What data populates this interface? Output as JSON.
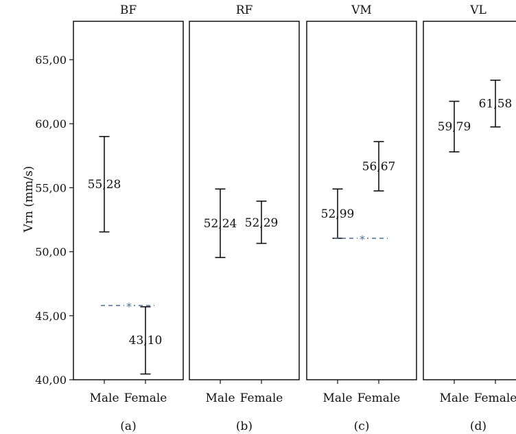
{
  "chart_data": {
    "type": "errorbar",
    "ylabel": "Vrn (mm/s)",
    "ylim": [
      40,
      68
    ],
    "yticks": [
      "40,00",
      "45,00",
      "50,00",
      "55,00",
      "60,00",
      "65,00"
    ],
    "ytick_values": [
      40,
      45,
      50,
      55,
      60,
      65
    ],
    "categories": [
      "Male",
      "Female"
    ],
    "panels": [
      {
        "title": "BF",
        "caption": "(a)",
        "points": [
          {
            "category": "Male",
            "mean": 55.28,
            "label": "55,28",
            "low": 51.55,
            "high": 59.0
          },
          {
            "category": "Female",
            "mean": 43.1,
            "label": "43,10",
            "low": 40.45,
            "high": 45.7
          }
        ],
        "significance": {
          "y": 45.8,
          "marker": "*"
        }
      },
      {
        "title": "RF",
        "caption": "(b)",
        "points": [
          {
            "category": "Male",
            "mean": 52.24,
            "label": "52,24",
            "low": 49.55,
            "high": 54.9
          },
          {
            "category": "Female",
            "mean": 52.29,
            "label": "52,29",
            "low": 50.65,
            "high": 53.95
          }
        ],
        "significance": null
      },
      {
        "title": "VM",
        "caption": "(c)",
        "points": [
          {
            "category": "Male",
            "mean": 52.99,
            "label": "52,99",
            "low": 51.05,
            "high": 54.9
          },
          {
            "category": "Female",
            "mean": 56.67,
            "label": "56,67",
            "low": 54.75,
            "high": 58.6
          }
        ],
        "significance": {
          "y": 51.05,
          "marker": "*"
        }
      },
      {
        "title": "VL",
        "caption": "(d)",
        "points": [
          {
            "category": "Male",
            "mean": 59.79,
            "label": "59,79",
            "low": 57.8,
            "high": 61.75
          },
          {
            "category": "Female",
            "mean": 61.58,
            "label": "61,58",
            "low": 59.75,
            "high": 63.4
          }
        ],
        "significance": null
      }
    ]
  },
  "colors": {
    "ink": "#111111",
    "significance_line": "#4a6e96"
  }
}
